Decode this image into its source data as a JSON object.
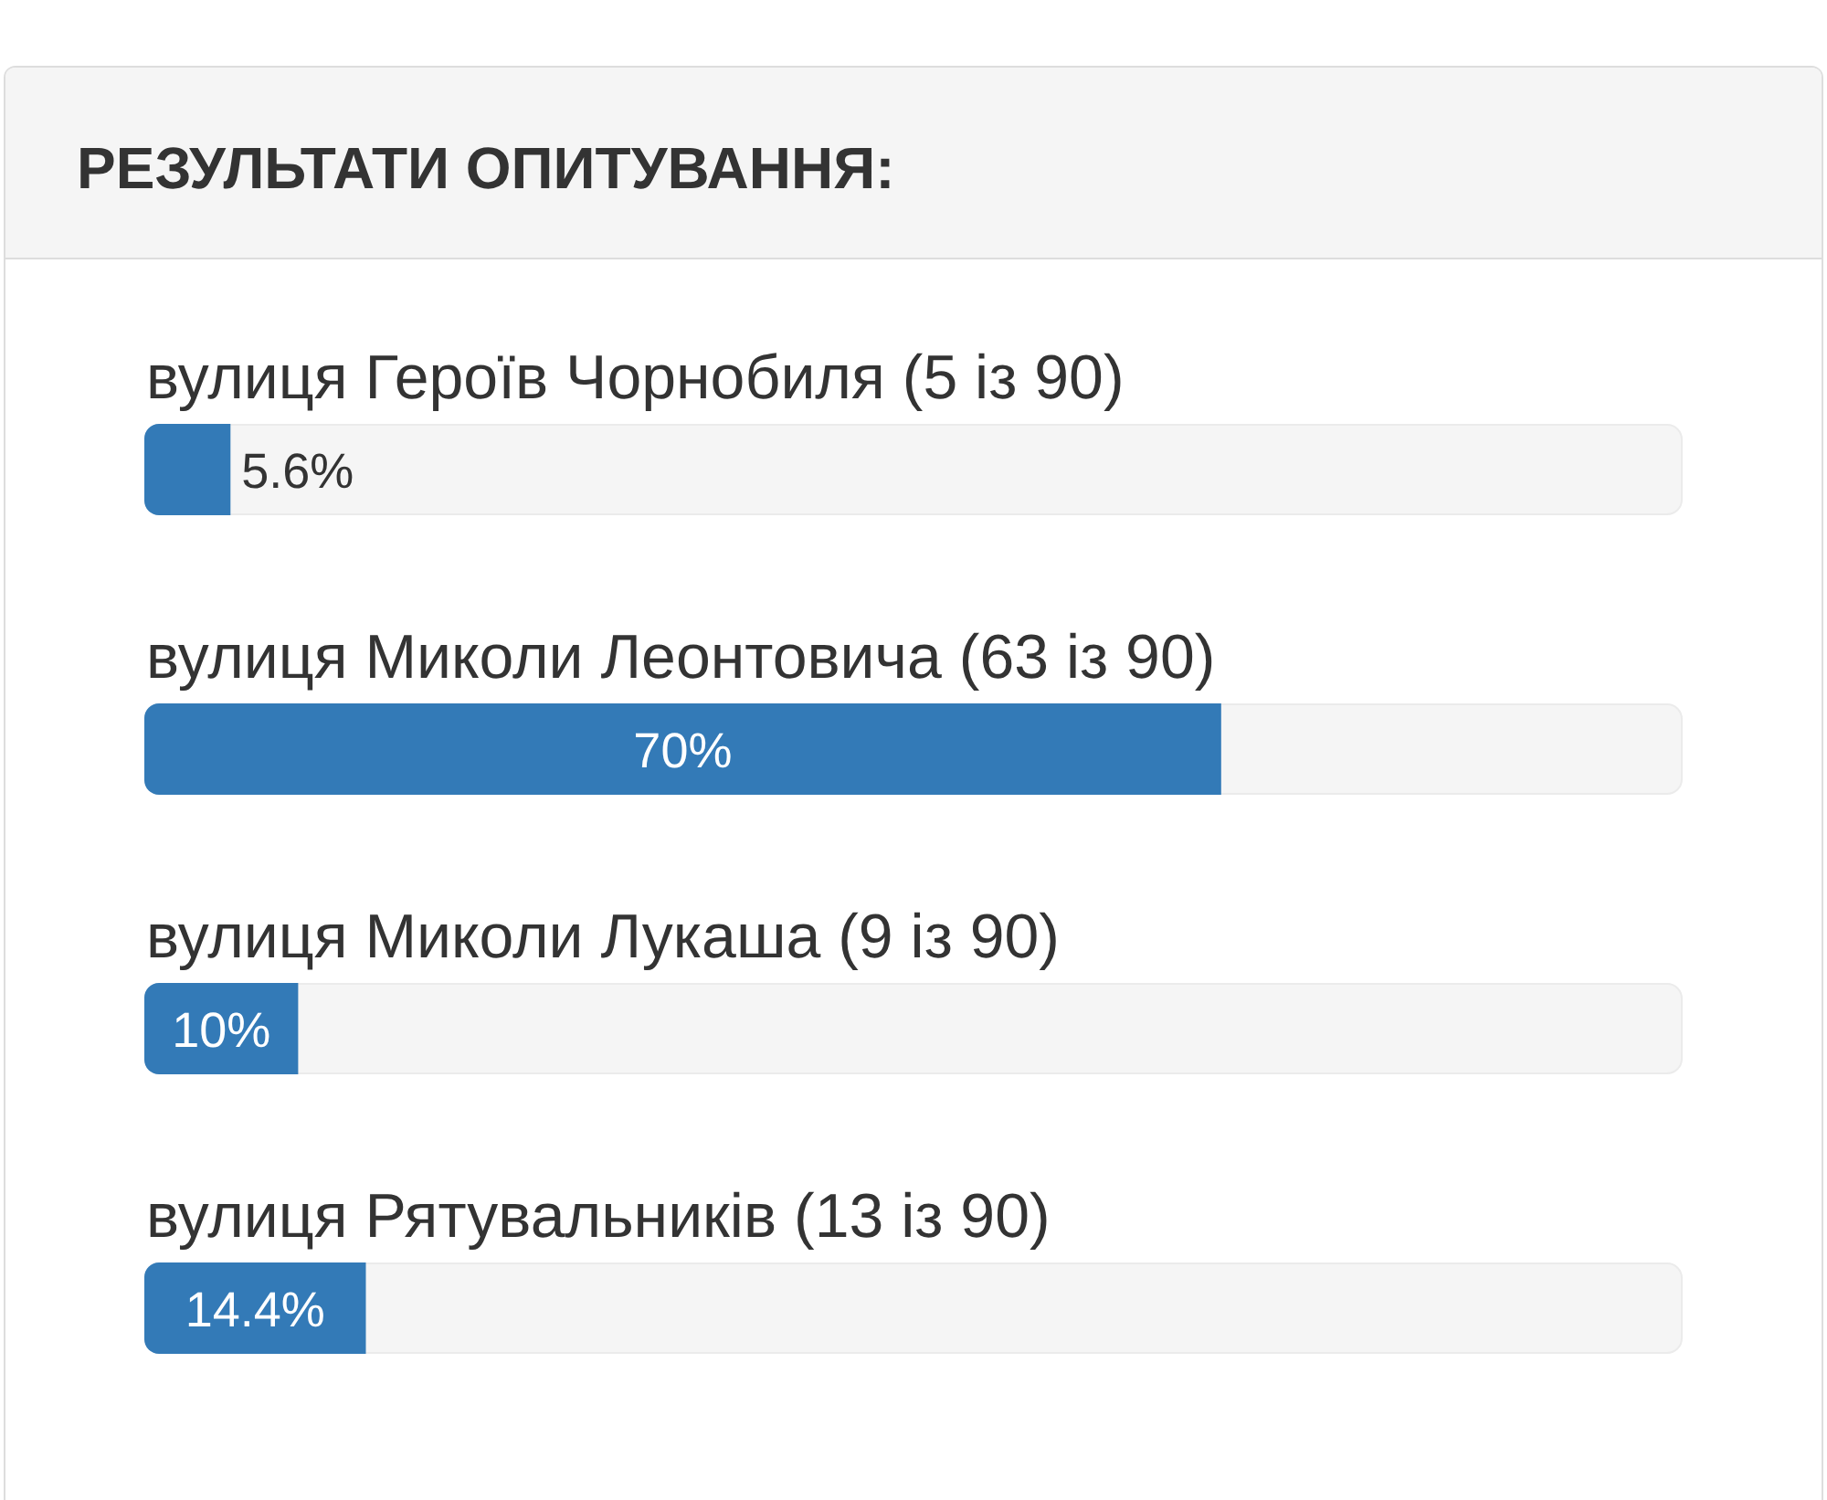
{
  "chart_data": {
    "type": "bar",
    "orientation": "horizontal",
    "title": "РЕЗУЛЬТАТИ ОПИТУВАННЯ:",
    "categories": [
      "вулиця Героїв Чорнобиля (5 із 90)",
      "вулиця Миколи Леонтовича (63 із 90)",
      "вулиця Миколи Лукаша (9 із 90)",
      "вулиця Рятувальників (13 із 90)"
    ],
    "values": [
      5.6,
      70,
      10,
      14.4
    ],
    "value_labels": [
      "5.6%",
      "70%",
      "10%",
      "14.4%"
    ],
    "color": "#337ab7",
    "xlim": [
      0,
      100
    ]
  }
}
